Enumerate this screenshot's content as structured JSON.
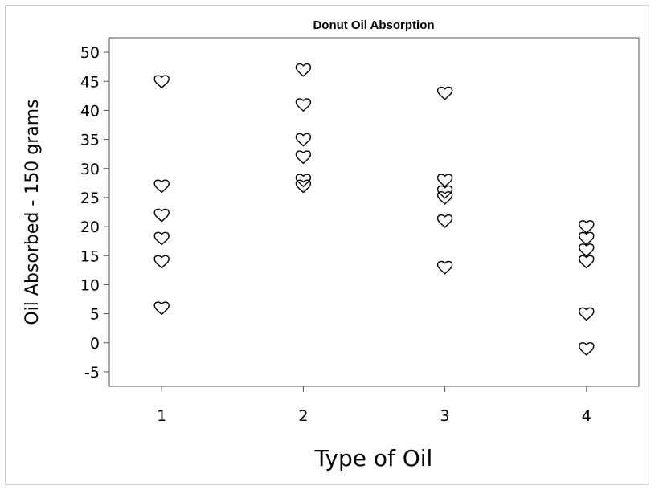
{
  "chart_data": {
    "type": "scatter",
    "title": "Donut Oil Absorption",
    "xlabel": "Type of Oil",
    "ylabel": "Oil Absorbed - 150 grams",
    "x_ticks": [
      "1",
      "2",
      "3",
      "4"
    ],
    "y_ticks": [
      "-5",
      "0",
      "5",
      "10",
      "15",
      "20",
      "25",
      "30",
      "35",
      "40",
      "45",
      "50"
    ],
    "xlim": [
      0.63,
      4.37
    ],
    "ylim": [
      -7.5,
      52.5
    ],
    "grid": false,
    "legend": "none",
    "marker": "heart-outline",
    "series": [
      {
        "points": [
          {
            "x": 1,
            "y": 45
          },
          {
            "x": 1,
            "y": 27
          },
          {
            "x": 1,
            "y": 22
          },
          {
            "x": 1,
            "y": 18
          },
          {
            "x": 1,
            "y": 14
          },
          {
            "x": 1,
            "y": 6
          },
          {
            "x": 2,
            "y": 47
          },
          {
            "x": 2,
            "y": 41
          },
          {
            "x": 2,
            "y": 35
          },
          {
            "x": 2,
            "y": 32
          },
          {
            "x": 2,
            "y": 28
          },
          {
            "x": 2,
            "y": 27
          },
          {
            "x": 3,
            "y": 43
          },
          {
            "x": 3,
            "y": 28
          },
          {
            "x": 3,
            "y": 26
          },
          {
            "x": 3,
            "y": 25
          },
          {
            "x": 3,
            "y": 21
          },
          {
            "x": 3,
            "y": 13
          },
          {
            "x": 4,
            "y": 20
          },
          {
            "x": 4,
            "y": 18
          },
          {
            "x": 4,
            "y": 16
          },
          {
            "x": 4,
            "y": 14
          },
          {
            "x": 4,
            "y": 5
          },
          {
            "x": 4,
            "y": -1
          }
        ]
      }
    ]
  },
  "colors": {
    "marker": "#000000",
    "axis": "#555555",
    "frame_border": "#d0d0d0"
  }
}
